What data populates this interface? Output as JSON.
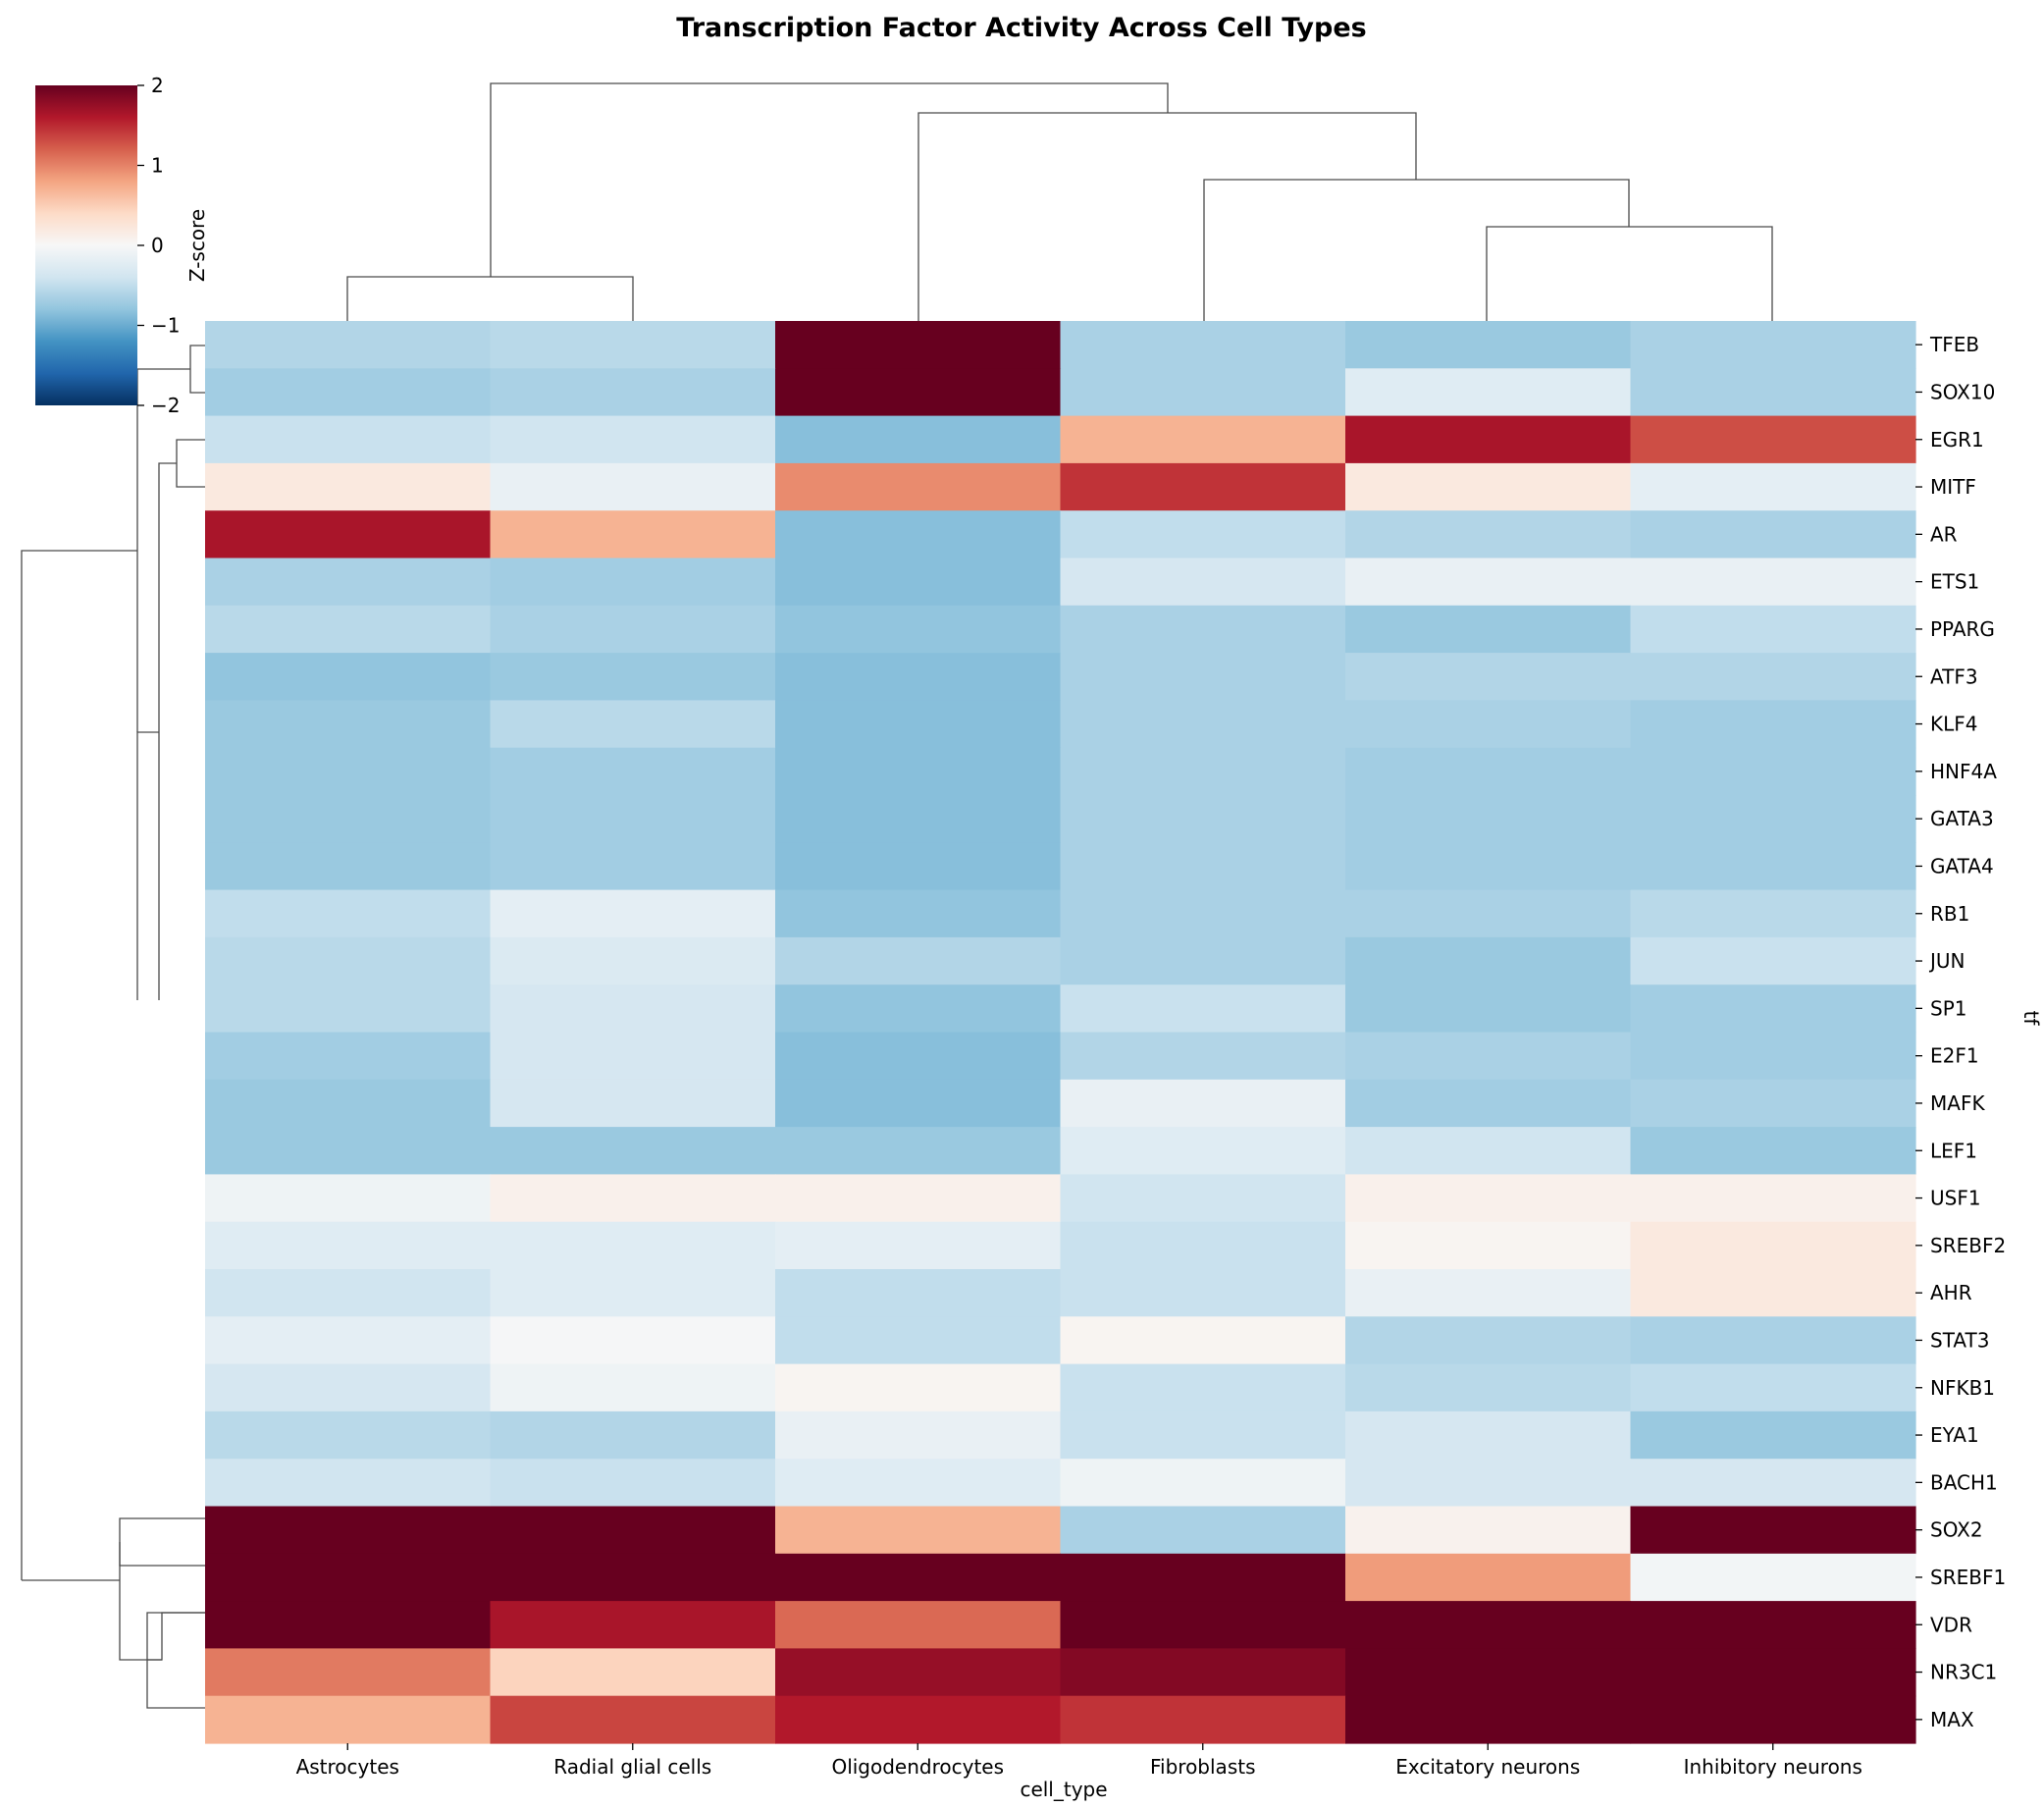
{
  "chart_data": {
    "type": "heatmap",
    "title": "Transcription Factor Activity Across Cell Types",
    "xlabel": "cell_type",
    "ylabel": "tf",
    "colorbar": {
      "label": "Z-score",
      "range": [
        -2,
        2
      ],
      "ticks": [
        2,
        1,
        0,
        -1,
        -2
      ],
      "tick_labels": [
        "2",
        "1",
        "0",
        "−1",
        "−2"
      ],
      "colormap": "RdBu_r"
    },
    "columns": [
      "Astrocytes",
      "Radial glial cells",
      "Oligodendrocytes",
      "Fibroblasts",
      "Excitatory neurons",
      "Inhibitory neurons"
    ],
    "rows": [
      "TFEB",
      "SOX10",
      "EGR1",
      "MITF",
      "AR",
      "ETS1",
      "PPARG",
      "ATF3",
      "KLF4",
      "HNF4A",
      "GATA3",
      "GATA4",
      "RB1",
      "JUN",
      "SP1",
      "E2F1",
      "MAFK",
      "LEF1",
      "USF1",
      "SREBF2",
      "AHR",
      "STAT3",
      "NFKB1",
      "EYA1",
      "BACH1",
      "SOX2",
      "SREBF1",
      "VDR",
      "NR3C1",
      "MAX"
    ],
    "values": [
      [
        -0.6,
        -0.55,
        2.5,
        -0.65,
        -0.75,
        -0.65
      ],
      [
        -0.7,
        -0.65,
        2.5,
        -0.65,
        -0.25,
        -0.65
      ],
      [
        -0.45,
        -0.4,
        -0.85,
        0.7,
        1.65,
        1.3
      ],
      [
        0.2,
        -0.15,
        0.95,
        1.45,
        0.2,
        -0.2
      ],
      [
        1.65,
        0.7,
        -0.85,
        -0.5,
        -0.6,
        -0.65
      ],
      [
        -0.65,
        -0.7,
        -0.85,
        -0.35,
        -0.15,
        -0.15
      ],
      [
        -0.55,
        -0.65,
        -0.8,
        -0.65,
        -0.75,
        -0.5
      ],
      [
        -0.8,
        -0.75,
        -0.85,
        -0.65,
        -0.6,
        -0.6
      ],
      [
        -0.75,
        -0.55,
        -0.85,
        -0.65,
        -0.65,
        -0.7
      ],
      [
        -0.75,
        -0.7,
        -0.85,
        -0.65,
        -0.7,
        -0.7
      ],
      [
        -0.75,
        -0.7,
        -0.85,
        -0.65,
        -0.7,
        -0.7
      ],
      [
        -0.75,
        -0.7,
        -0.85,
        -0.65,
        -0.7,
        -0.7
      ],
      [
        -0.5,
        -0.2,
        -0.8,
        -0.65,
        -0.65,
        -0.55
      ],
      [
        -0.55,
        -0.3,
        -0.6,
        -0.65,
        -0.75,
        -0.45
      ],
      [
        -0.55,
        -0.35,
        -0.8,
        -0.45,
        -0.75,
        -0.7
      ],
      [
        -0.7,
        -0.35,
        -0.85,
        -0.6,
        -0.65,
        -0.7
      ],
      [
        -0.75,
        -0.35,
        -0.85,
        -0.15,
        -0.7,
        -0.65
      ],
      [
        -0.75,
        -0.75,
        -0.75,
        -0.25,
        -0.4,
        -0.75
      ],
      [
        -0.1,
        0.1,
        0.1,
        -0.4,
        0.1,
        0.1
      ],
      [
        -0.25,
        -0.25,
        -0.2,
        -0.45,
        0.05,
        0.2
      ],
      [
        -0.4,
        -0.25,
        -0.5,
        -0.45,
        -0.15,
        0.2
      ],
      [
        -0.2,
        -0.02,
        -0.5,
        0.05,
        -0.6,
        -0.65
      ],
      [
        -0.35,
        -0.1,
        0.05,
        -0.45,
        -0.55,
        -0.5
      ],
      [
        -0.55,
        -0.6,
        -0.15,
        -0.45,
        -0.35,
        -0.75
      ],
      [
        -0.4,
        -0.45,
        -0.25,
        -0.1,
        -0.35,
        -0.35
      ],
      [
        2.5,
        2.5,
        0.7,
        -0.65,
        0.08,
        2.5
      ],
      [
        2.5,
        2.2,
        2.5,
        2.5,
        0.85,
        -0.05
      ],
      [
        2.2,
        1.65,
        1.15,
        2.5,
        2.5,
        2.5
      ],
      [
        1.05,
        0.45,
        1.75,
        1.85,
        2.5,
        2.5
      ],
      [
        0.7,
        1.35,
        1.6,
        1.45,
        2.5,
        2.5
      ]
    ]
  }
}
